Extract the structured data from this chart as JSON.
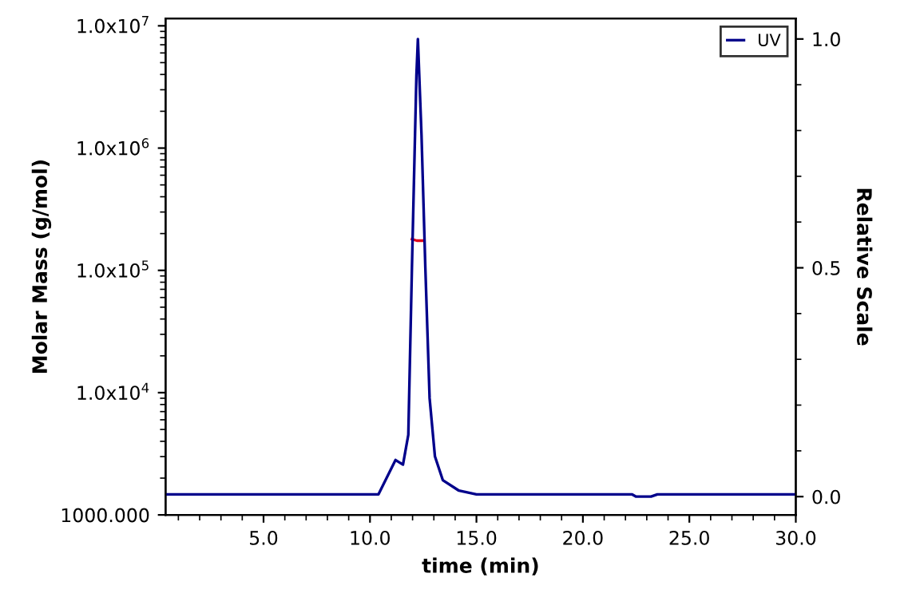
{
  "chart_data": {
    "type": "line",
    "xlabel": "time (min)",
    "ylabel": "Molar Mass (g/mol)",
    "y2label": "Relative Scale",
    "xlim": [
      0.4,
      30.0
    ],
    "xticks": [
      {
        "value": 5,
        "label": "5.0"
      },
      {
        "value": 10,
        "label": "10.0"
      },
      {
        "value": 15,
        "label": "15.0"
      },
      {
        "value": 20,
        "label": "20.0"
      },
      {
        "value": 25,
        "label": "25.0"
      },
      {
        "value": 30,
        "label": "30.0"
      }
    ],
    "log": "y",
    "ylim": [
      1000,
      11500000
    ],
    "yticks": [
      {
        "value": 1000,
        "label": "1000.000"
      },
      {
        "value": 10000,
        "label": "1.0x10$^{4}$"
      },
      {
        "value": 100000,
        "label": "1.0x10$^{5}$"
      },
      {
        "value": 1000000,
        "label": "1.0x10$^{6}$"
      },
      {
        "value": 10000000,
        "label": "1.0x10$^{7}$"
      }
    ],
    "y2lim": [
      -0.04,
      1.045
    ],
    "y2ticks": [
      {
        "value": 0,
        "label": "0.0"
      },
      {
        "value": 0.5,
        "label": "0.5"
      },
      {
        "value": 1,
        "label": "1.0"
      }
    ],
    "legend": "top right",
    "grid": false,
    "marker": "none",
    "line_style": "solid",
    "series": [
      {
        "name": "UV",
        "color": "#00008b",
        "axis": "y2",
        "x": [
          0.4,
          5,
          10,
          10.4,
          11.2,
          11.55,
          11.8,
          11.97,
          12.18,
          12.25,
          12.42,
          12.6,
          12.8,
          13.05,
          13.42,
          14.18,
          15,
          22.3,
          22.5,
          23.2,
          23.5,
          30
        ],
        "values": [
          0.005,
          0.005,
          0.005,
          0.005,
          0.08,
          0.07,
          0.135,
          0.5,
          0.92,
          1.0,
          0.79,
          0.5,
          0.215,
          0.088,
          0.036,
          0.013,
          0.005,
          0.005,
          0.0,
          0.0,
          0.005,
          0.005
        ]
      },
      {
        "color": "#e0001b",
        "x": [
          11.97,
          12.2,
          12.55
        ],
        "values": [
          180000,
          175000,
          175000
        ]
      }
    ]
  }
}
